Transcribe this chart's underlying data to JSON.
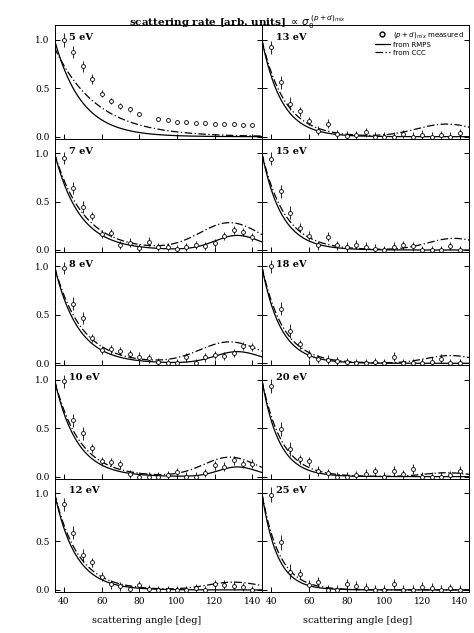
{
  "title_main": "scattering rate [arb. units]",
  "title_math": "(p+d)_mix",
  "xlabel": "scattering angle [deg]",
  "panels_left": [
    5,
    7,
    8,
    10,
    12
  ],
  "panels_right": [
    13,
    15,
    18,
    20,
    25
  ],
  "xlim": [
    35,
    145
  ],
  "ylim": [
    -0.02,
    1.15
  ],
  "yticks": [
    0.0,
    0.5,
    1.0
  ],
  "xticks": [
    40,
    60,
    80,
    100,
    120,
    140
  ]
}
